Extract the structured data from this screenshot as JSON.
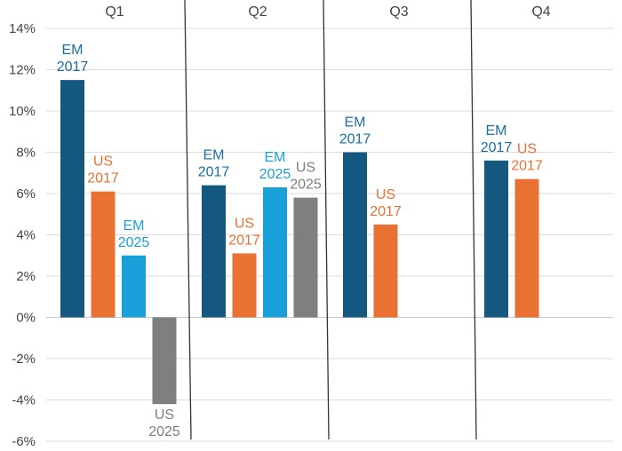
{
  "chart_data": {
    "type": "bar",
    "title": "",
    "xlabel": "",
    "ylabel": "",
    "ylim": [
      -6,
      14
    ],
    "y_ticks": [
      "14%",
      "12%",
      "10%",
      "8%",
      "6%",
      "4%",
      "2%",
      "0%",
      "-2%",
      "-4%",
      "-6%"
    ],
    "grid": true,
    "categories": [
      "Q1",
      "Q2",
      "Q3",
      "Q4"
    ],
    "series": [
      {
        "name": "EM 2017",
        "label_lines": [
          "EM",
          "2017"
        ],
        "color": "#15587f",
        "label_color": "#1a6fa3",
        "values": [
          11.5,
          6.4,
          8.0,
          7.6
        ]
      },
      {
        "name": "US 2017",
        "label_lines": [
          "US",
          "2017"
        ],
        "color": "#e97132",
        "label_color": "#e97132",
        "values": [
          6.1,
          3.1,
          4.5,
          6.7
        ]
      },
      {
        "name": "EM 2025",
        "label_lines": [
          "EM",
          "2025"
        ],
        "color": "#1aa0d8",
        "label_color": "#1aa0d8",
        "values": [
          3.0,
          6.3,
          null,
          null
        ]
      },
      {
        "name": "US 2025",
        "label_lines": [
          "US",
          "2025"
        ],
        "color": "#7f7f7f",
        "label_color": "#7f7f7f",
        "values": [
          -4.2,
          5.8,
          null,
          null
        ]
      }
    ]
  }
}
